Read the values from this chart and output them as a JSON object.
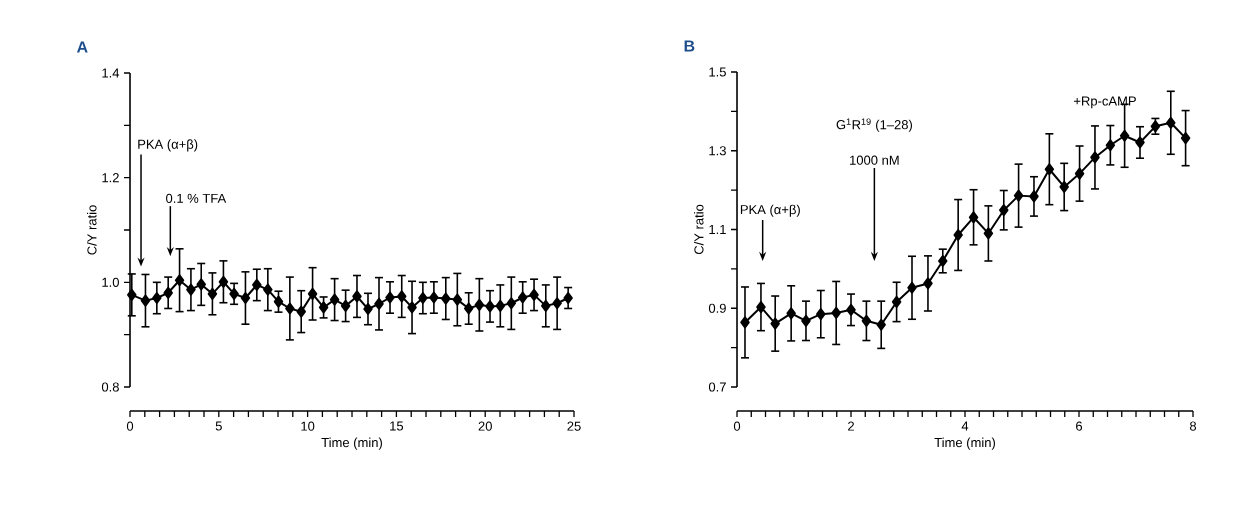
{
  "chart_data": [
    {
      "type": "line",
      "title": "A",
      "xlabel": "Time (min)",
      "ylabel": "C/Y ratio",
      "marker": "diamond",
      "line_style": "solid",
      "xlim": [
        0,
        25
      ],
      "xticks": [
        0,
        5,
        10,
        15,
        20,
        25
      ],
      "ylim": [
        0.8,
        1.4
      ],
      "yticks": [
        0.8,
        {
          "value": 0.9,
          "label": null
        },
        {
          "value": 1.0,
          "label": "1.0"
        },
        {
          "value": 1.1,
          "label": null
        },
        1.2,
        {
          "value": 1.3,
          "label": null
        },
        1.4
      ],
      "annotations": [
        "PKA (α+β)",
        "0.1 % TFA"
      ],
      "series": [
        {
          "color": "#000000",
          "x": [
            0.1,
            0.87,
            1.51,
            2.15,
            2.79,
            3.43,
            4.01,
            4.64,
            5.26,
            5.86,
            6.5,
            7.14,
            7.76,
            8.36,
            9.0,
            9.64,
            10.28,
            10.9,
            11.52,
            12.14,
            12.78,
            13.4,
            14.02,
            14.64,
            15.3,
            15.88,
            16.49,
            17.11,
            17.78,
            18.43,
            19.07,
            19.67,
            20.27,
            20.85,
            21.47,
            22.11,
            22.75,
            23.41,
            24.05,
            24.67
          ],
          "values": [
            0.976,
            0.965,
            0.97,
            0.98,
            1.004,
            0.986,
            0.996,
            0.978,
            1.001,
            0.978,
            0.97,
            0.995,
            0.986,
            0.963,
            0.95,
            0.944,
            0.978,
            0.952,
            0.967,
            0.955,
            0.973,
            0.949,
            0.959,
            0.971,
            0.973,
            0.952,
            0.97,
            0.971,
            0.969,
            0.967,
            0.95,
            0.957,
            0.954,
            0.955,
            0.96,
            0.971,
            0.976,
            0.955,
            0.96,
            0.97
          ],
          "errors": [
            0.04,
            0.05,
            0.03,
            0.03,
            0.06,
            0.04,
            0.04,
            0.04,
            0.04,
            0.02,
            0.05,
            0.03,
            0.04,
            0.02,
            0.06,
            0.04,
            0.05,
            0.02,
            0.04,
            0.03,
            0.04,
            0.03,
            0.05,
            0.03,
            0.04,
            0.05,
            0.03,
            0.03,
            0.04,
            0.05,
            0.03,
            0.05,
            0.03,
            0.04,
            0.05,
            0.03,
            0.03,
            0.04,
            0.05,
            0.02
          ]
        }
      ]
    },
    {
      "type": "line",
      "title": "B",
      "xlabel": "Time (min)",
      "ylabel": "C/Y ratio",
      "marker": "diamond",
      "line_style": "solid",
      "xlim": [
        0,
        8
      ],
      "xticks": [
        0,
        2,
        4,
        6,
        8
      ],
      "ylim": [
        0.7,
        1.5
      ],
      "yticks": [
        0.7,
        {
          "value": 0.8,
          "label": null
        },
        0.9,
        {
          "value": 1.0,
          "label": null
        },
        1.1,
        {
          "value": 1.2,
          "label": null
        },
        1.3,
        {
          "value": 1.4,
          "label": null
        },
        1.5
      ],
      "annotations": [
        "PKA (α+β)",
        "G$^{1}$R$^{19}$ (1–28)",
        "1000 nM",
        "+Rp-cAMP"
      ],
      "series": [
        {
          "color": "#000000",
          "x": [
            0.14,
            0.42,
            0.67,
            0.95,
            1.21,
            1.47,
            1.74,
            2.0,
            2.27,
            2.53,
            2.8,
            3.07,
            3.35,
            3.61,
            3.88,
            4.15,
            4.41,
            4.68,
            4.94,
            5.21,
            5.48,
            5.74,
            6.01,
            6.28,
            6.55,
            6.8,
            7.07,
            7.34,
            7.61,
            7.87
          ],
          "values": [
            0.864,
            0.903,
            0.861,
            0.887,
            0.868,
            0.885,
            0.888,
            0.896,
            0.868,
            0.858,
            0.916,
            0.952,
            0.963,
            1.02,
            1.086,
            1.131,
            1.09,
            1.149,
            1.186,
            1.184,
            1.253,
            1.208,
            1.242,
            1.283,
            1.314,
            1.338,
            1.321,
            1.362,
            1.371,
            1.332
          ],
          "errors": [
            0.09,
            0.06,
            0.07,
            0.07,
            0.05,
            0.06,
            0.08,
            0.04,
            0.05,
            0.06,
            0.05,
            0.08,
            0.07,
            0.03,
            0.09,
            0.07,
            0.07,
            0.05,
            0.08,
            0.05,
            0.09,
            0.06,
            0.07,
            0.08,
            0.05,
            0.08,
            0.04,
            0.02,
            0.08,
            0.07
          ]
        }
      ]
    }
  ]
}
